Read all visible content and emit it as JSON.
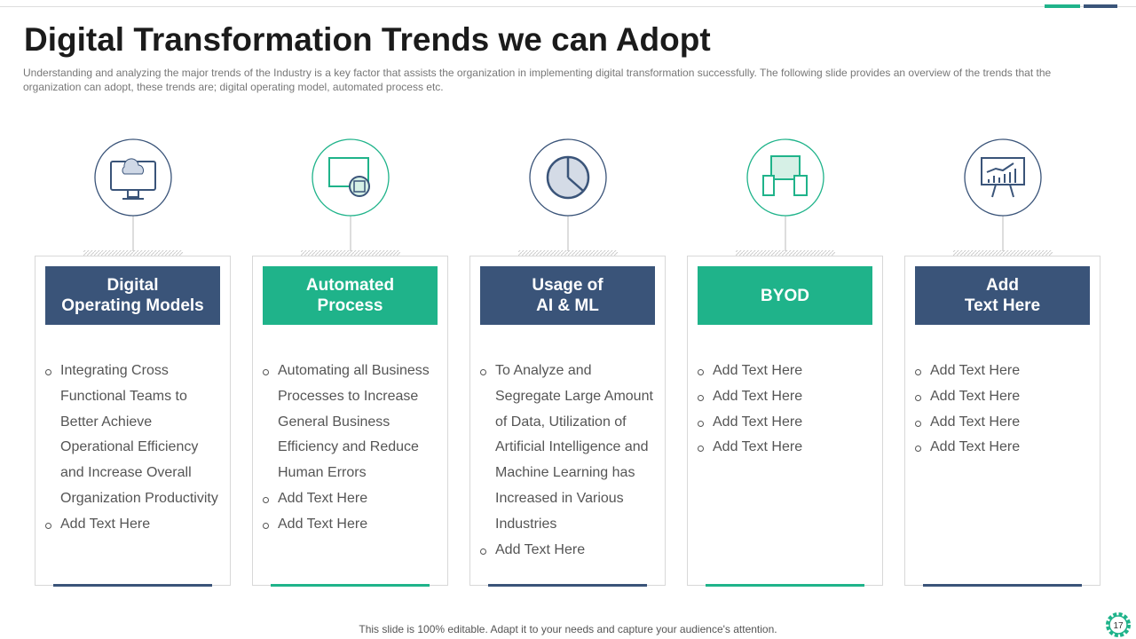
{
  "header": {
    "title": "Digital Transformation Trends we can Adopt",
    "subtitle": "Understanding  and analyzing the major trends of the Industry is a key factor that assists the organization in implementing digital transformation  successfully. The following  slide provides  an overview  of the trends that the organization  can adopt, these trends are; digital operating model, automated process etc."
  },
  "cards": [
    {
      "heading": [
        "Digital",
        "Operating Models"
      ],
      "style": "navy",
      "bullets": [
        "Integrating  Cross Functional Teams to Better Achieve Operational Efficiency and Increase  Overall Organization  Productivity",
        "Add Text Here"
      ]
    },
    {
      "heading": [
        "Automated",
        "Process"
      ],
      "style": "green",
      "bullets": [
        "Automating all Business Processes to Increase General   Business Efficiency and Reduce Human  Errors",
        "Add Text Here",
        "Add Text Here"
      ]
    },
    {
      "heading": [
        "Usage of",
        "AI & ML"
      ],
      "style": "navy",
      "bullets": [
        "To Analyze  and Segregate Large Amount of Data, Utilization  of Artificial Intelligence  and Machine  Learning has Increased in Various Industries",
        "Add Text Here"
      ]
    },
    {
      "heading": [
        "BYOD"
      ],
      "style": "green",
      "bullets": [
        "Add Text Here",
        "Add Text Here",
        "Add Text Here",
        "Add Text Here"
      ]
    },
    {
      "heading": [
        "Add",
        "Text Here"
      ],
      "style": "navy",
      "bullets": [
        "Add Text Here",
        "Add Text Here",
        "Add Text Here",
        "Add Text Here"
      ]
    }
  ],
  "footer": {
    "note": "This slide is 100% editable. Adapt it to your needs and capture your audience's attention.",
    "page": "17"
  }
}
